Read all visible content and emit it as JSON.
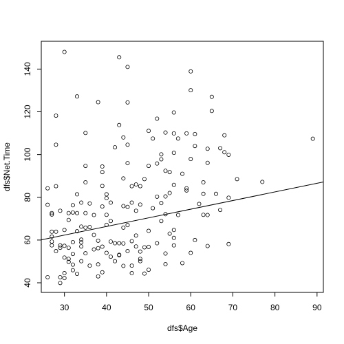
{
  "chart_data": {
    "type": "scatter",
    "xlabel": "dfs$Age",
    "ylabel": "dfs$Net.Time",
    "xlim": [
      24.5,
      91.5
    ],
    "ylim": [
      35.5,
      153
    ],
    "x_ticks": [
      30,
      40,
      50,
      60,
      70,
      80,
      90
    ],
    "y_ticks": [
      40,
      60,
      80,
      100,
      120,
      140
    ],
    "grid": false,
    "point_style": "open-circle",
    "regression_line": {
      "intercept": 50.2,
      "slope": 0.404
    },
    "points": [
      [
        26,
        42.6
      ],
      [
        26,
        76.5
      ],
      [
        26,
        84.2
      ],
      [
        27,
        59.3
      ],
      [
        27,
        61.6
      ],
      [
        27,
        57.5
      ],
      [
        27,
        63.9
      ],
      [
        27,
        71.9
      ],
      [
        27,
        72.6
      ],
      [
        28,
        63.9
      ],
      [
        28,
        85.2
      ],
      [
        28,
        104.6
      ],
      [
        28,
        118.2
      ],
      [
        28,
        54.8
      ],
      [
        29,
        42.6
      ],
      [
        29,
        39.9
      ],
      [
        29,
        73.7
      ],
      [
        29,
        57.5
      ],
      [
        29,
        56.4
      ],
      [
        30,
        148.0
      ],
      [
        30,
        44.5
      ],
      [
        30,
        42.2
      ],
      [
        30,
        57.3
      ],
      [
        30,
        51.8
      ],
      [
        30,
        64.7
      ],
      [
        31,
        69.4
      ],
      [
        31,
        72.6
      ],
      [
        31,
        49.8
      ],
      [
        31,
        51.2
      ],
      [
        31,
        56.4
      ],
      [
        32,
        45.9
      ],
      [
        32,
        53.5
      ],
      [
        32,
        48.5
      ],
      [
        32,
        72.9
      ],
      [
        32,
        76.3
      ],
      [
        32,
        59.0
      ],
      [
        33,
        44.2
      ],
      [
        33,
        127.2
      ],
      [
        33,
        81.4
      ],
      [
        33,
        72.6
      ],
      [
        33,
        64.1
      ],
      [
        34,
        57.0
      ],
      [
        34,
        58.9
      ],
      [
        34,
        60.2
      ],
      [
        34,
        77.5
      ],
      [
        34,
        66.3
      ],
      [
        34,
        50.1
      ],
      [
        35,
        53.8
      ],
      [
        35,
        110.1
      ],
      [
        35,
        94.7
      ],
      [
        35,
        87.0
      ],
      [
        35,
        72.6
      ],
      [
        35,
        65.8
      ],
      [
        36,
        66.1
      ],
      [
        36,
        77.1
      ],
      [
        36,
        48.0
      ],
      [
        37,
        55.6
      ],
      [
        37,
        71.7
      ],
      [
        37,
        62.4
      ],
      [
        38,
        124.5
      ],
      [
        38,
        59.7
      ],
      [
        38,
        56.2
      ],
      [
        38,
        43.0
      ],
      [
        38,
        48.6
      ],
      [
        39,
        44.9
      ],
      [
        39,
        91.8
      ],
      [
        39,
        94.4
      ],
      [
        39,
        85.3
      ],
      [
        39,
        75.7
      ],
      [
        39,
        56.9
      ],
      [
        40,
        54.0
      ],
      [
        40,
        67.1
      ],
      [
        40,
        71.8
      ],
      [
        40,
        79.6
      ],
      [
        40,
        81.4
      ],
      [
        41,
        68.9
      ],
      [
        41,
        77.5
      ],
      [
        41,
        59.3
      ],
      [
        41,
        52.2
      ],
      [
        42,
        50.1
      ],
      [
        42,
        103.4
      ],
      [
        42,
        58.5
      ],
      [
        43,
        145.5
      ],
      [
        43,
        113.8
      ],
      [
        43,
        58.5
      ],
      [
        43,
        53.1
      ],
      [
        43,
        52.9
      ],
      [
        44,
        108.0
      ],
      [
        44,
        88.8
      ],
      [
        44,
        75.9
      ],
      [
        44,
        65.8
      ],
      [
        44,
        58.4
      ],
      [
        44,
        47.9
      ],
      [
        45,
        141.0
      ],
      [
        45,
        124.4
      ],
      [
        45,
        104.6
      ],
      [
        45,
        96.0
      ],
      [
        45,
        75.5
      ],
      [
        45,
        67.0
      ],
      [
        45,
        54.8
      ],
      [
        46,
        85.2
      ],
      [
        46,
        77.5
      ],
      [
        46,
        59.5
      ],
      [
        46,
        44.5
      ],
      [
        46,
        48.0
      ],
      [
        47,
        86.0
      ],
      [
        47,
        73.7
      ],
      [
        47,
        62.1
      ],
      [
        47,
        57.0
      ],
      [
        48,
        85.2
      ],
      [
        48,
        76.6
      ],
      [
        48,
        54.6
      ],
      [
        48,
        51.2
      ],
      [
        48,
        50.1
      ],
      [
        49,
        88.5
      ],
      [
        49,
        56.6
      ],
      [
        49,
        44.3
      ],
      [
        50,
        111.1
      ],
      [
        50,
        94.7
      ],
      [
        50,
        64.3
      ],
      [
        50,
        56.8
      ],
      [
        50,
        46.1
      ],
      [
        51,
        107.5
      ],
      [
        51,
        74.9
      ],
      [
        52,
        116.8
      ],
      [
        52,
        95.8
      ],
      [
        52,
        80.3
      ],
      [
        52,
        58.5
      ],
      [
        53,
        100.1
      ],
      [
        53,
        97.8
      ],
      [
        53,
        77.3
      ],
      [
        53,
        68.9
      ],
      [
        54,
        110.3
      ],
      [
        54,
        92.4
      ],
      [
        54,
        80.4
      ],
      [
        54,
        72.1
      ],
      [
        54,
        53.7
      ],
      [
        54,
        48.7
      ],
      [
        55,
        91.8
      ],
      [
        55,
        82.0
      ],
      [
        55,
        63.0
      ],
      [
        56,
        119.7
      ],
      [
        56,
        109.9
      ],
      [
        56,
        100.8
      ],
      [
        56,
        85.8
      ],
      [
        56,
        64.7
      ],
      [
        56,
        61.0
      ],
      [
        56,
        57.5
      ],
      [
        57,
        71.7
      ],
      [
        57,
        107.5
      ],
      [
        58,
        91.0
      ],
      [
        58,
        49.2
      ],
      [
        59,
        109.9
      ],
      [
        59,
        84.2
      ],
      [
        59,
        83.2
      ],
      [
        60,
        138.9
      ],
      [
        60,
        130.1
      ],
      [
        60,
        97.9
      ],
      [
        60,
        54.0
      ],
      [
        61,
        109.6
      ],
      [
        61,
        104.0
      ],
      [
        61,
        60.0
      ],
      [
        62,
        76.9
      ],
      [
        63,
        87.0
      ],
      [
        63,
        81.6
      ],
      [
        63,
        71.8
      ],
      [
        64,
        102.7
      ],
      [
        64,
        96.1
      ],
      [
        64,
        71.7
      ],
      [
        64,
        57.2
      ],
      [
        65,
        127.0
      ],
      [
        65,
        120.4
      ],
      [
        66,
        81.6
      ],
      [
        67,
        103.0
      ],
      [
        67,
        74.1
      ],
      [
        68,
        109.0
      ],
      [
        68,
        101.1
      ],
      [
        69,
        99.9
      ],
      [
        69,
        79.8
      ],
      [
        69,
        58.1
      ],
      [
        71,
        88.5
      ],
      [
        77,
        87.2
      ],
      [
        89,
        107.4
      ]
    ]
  }
}
